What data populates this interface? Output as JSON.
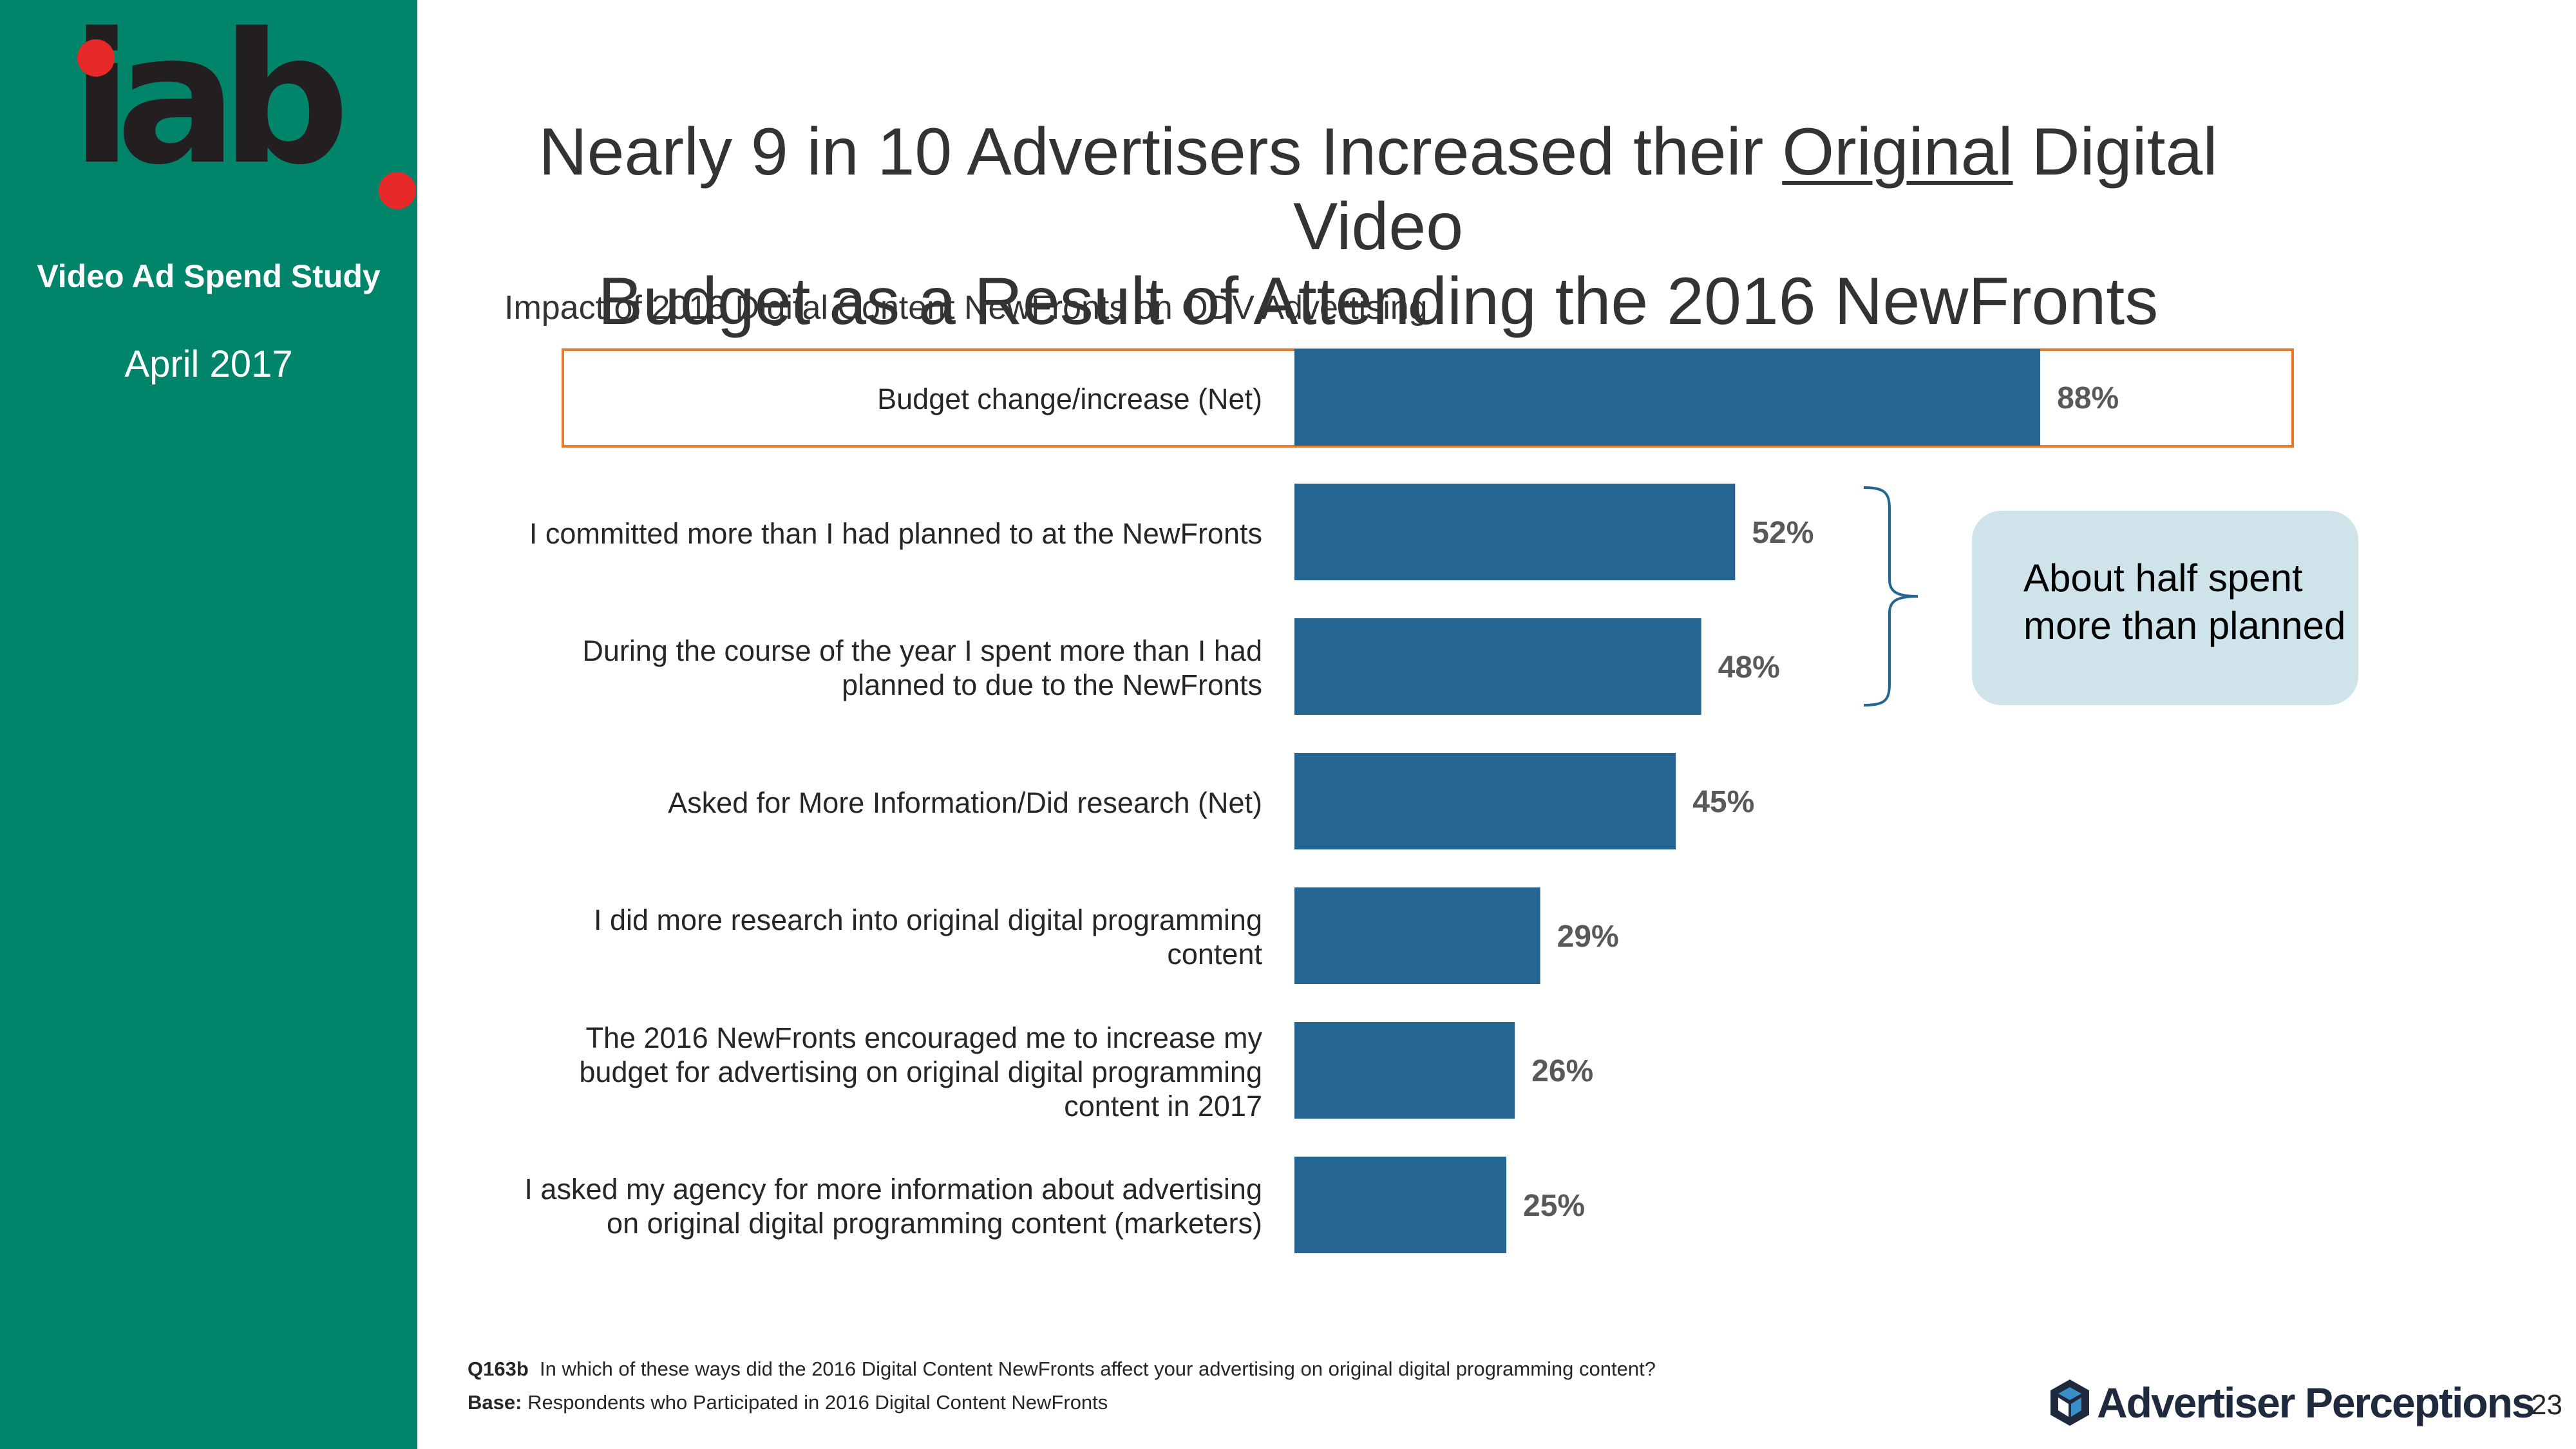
{
  "sidebar": {
    "logo_text": "iab",
    "study_name": "Video Ad Spend Study",
    "date": "April 2017"
  },
  "title": {
    "before": "Nearly 9 in 10 Advertisers Increased their ",
    "underlined": "Original",
    "after": " Digital Video",
    "line2": "Budget as a Result of Attending the 2016 NewFronts"
  },
  "chart_data": {
    "type": "bar",
    "orientation": "horizontal",
    "title": "Impact of 2016 Digital Content NewFronts on ODV Advertising",
    "categories": [
      [
        "Budget change/increase (Net)"
      ],
      [
        "I committed more than I had planned to at the NewFronts"
      ],
      [
        "During the course of the year I spent more than I had",
        "planned to due to the NewFronts"
      ],
      [
        "Asked for More Information/Did research (Net)"
      ],
      [
        "I did more research into original digital programming",
        "content"
      ],
      [
        "The 2016 NewFronts encouraged me to increase my",
        "budget for advertising on original digital programming",
        "content in 2017"
      ],
      [
        "I asked my agency for more information about advertising",
        "on original digital programming content (marketers)"
      ]
    ],
    "values": [
      88,
      52,
      48,
      45,
      29,
      26,
      25
    ],
    "value_labels": [
      "88%",
      "52%",
      "48%",
      "45%",
      "29%",
      "26%",
      "25%"
    ],
    "unit": "%",
    "xlim": [
      0,
      100
    ],
    "bar_color": "#246592",
    "highlighted_category_index": 0,
    "highlight_color": "#e8772e"
  },
  "callout": {
    "lines": [
      "About half spent",
      "more than planned"
    ]
  },
  "footnotes": {
    "question_id": "Q163b",
    "question_text": "In which of these ways did the 2016 Digital Content NewFronts affect your advertising on original digital programming content?",
    "base_label": "Base:",
    "base_text": "Respondents who Participated in 2016 Digital Content NewFronts"
  },
  "brand": {
    "name": "Advertiser Perceptions",
    "page_number": "23"
  }
}
